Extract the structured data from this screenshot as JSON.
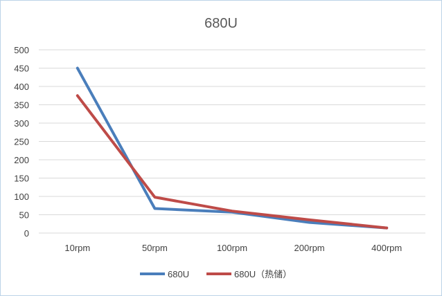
{
  "chart_data": {
    "type": "line",
    "title": "680U",
    "categories": [
      "10rpm",
      "50rpm",
      "100rpm",
      "200rpm",
      "400rpm"
    ],
    "ylim": [
      0,
      500
    ],
    "yticks": [
      0,
      50,
      100,
      150,
      200,
      250,
      300,
      350,
      400,
      450,
      500
    ],
    "grid": true,
    "legend": "bottom",
    "series": [
      {
        "name": "680U",
        "color": "#4a7ebb",
        "values": [
          450,
          67,
          57,
          29,
          14
        ]
      },
      {
        "name": "680U（热储）",
        "color": "#be4b48",
        "values": [
          375,
          98,
          60,
          36,
          14
        ]
      }
    ]
  }
}
